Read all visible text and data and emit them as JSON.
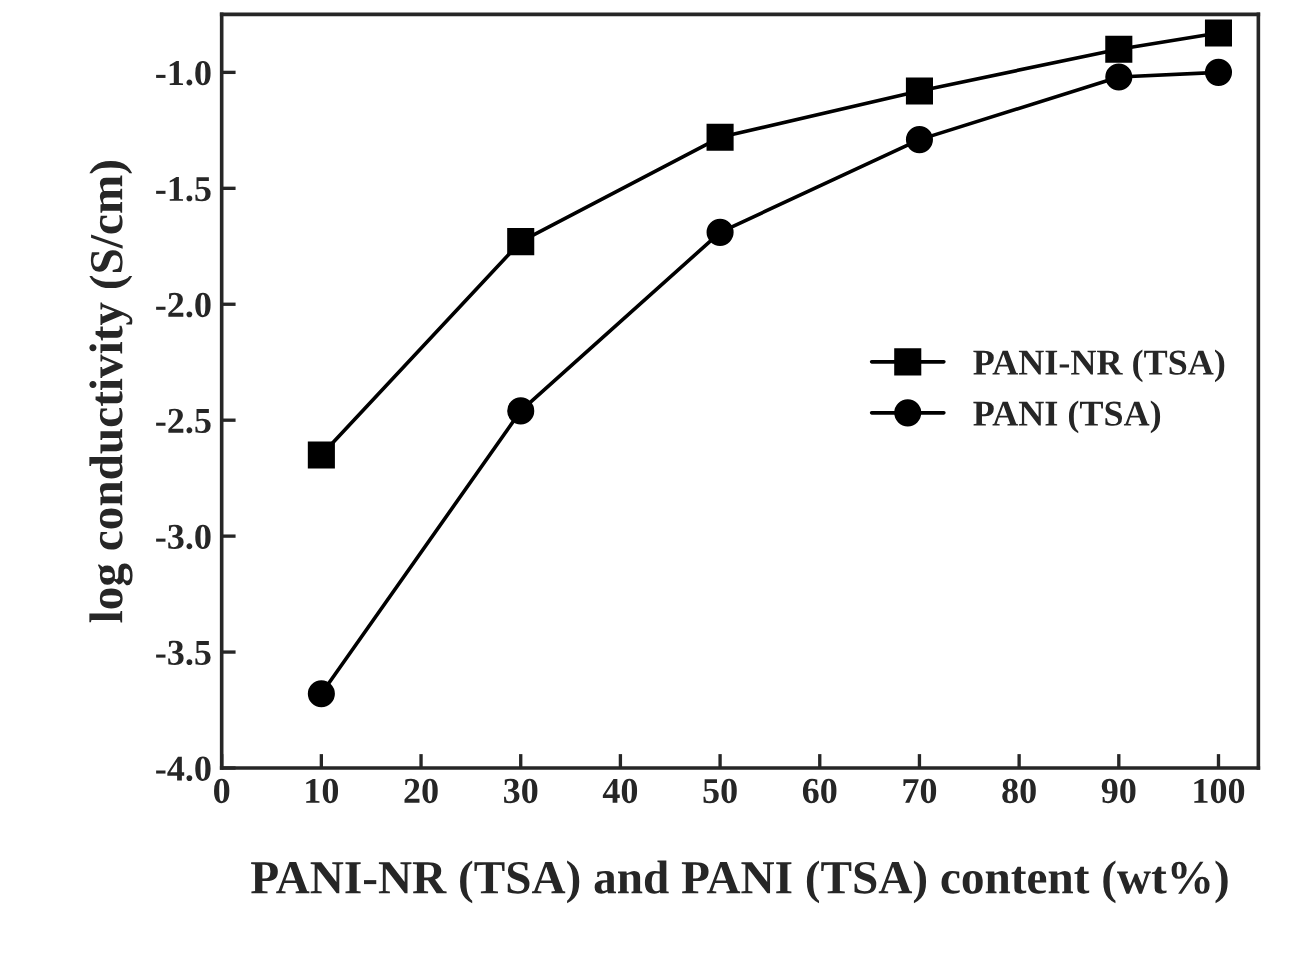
{
  "chart_data": {
    "type": "line",
    "xlabel": "PANI-NR (TSA) and PANI (TSA) content (wt%)",
    "ylabel": "log conductivity (S/cm)",
    "x": [
      10,
      30,
      50,
      70,
      90,
      100
    ],
    "series": [
      {
        "name": "PANI-NR (TSA)",
        "color": "#000000",
        "marker": "square",
        "values": [
          -2.65,
          -1.73,
          -1.28,
          -1.08,
          -0.9,
          -0.83
        ]
      },
      {
        "name": "PANI (TSA)",
        "color": "#000000",
        "marker": "circle",
        "values": [
          -3.68,
          -2.46,
          -1.69,
          -1.29,
          -1.02,
          -1.0
        ]
      }
    ],
    "xlim": [
      0,
      104
    ],
    "xticks": [
      0,
      10,
      20,
      30,
      40,
      50,
      60,
      70,
      80,
      90,
      100
    ],
    "ylim": [
      -4.0,
      -0.75
    ],
    "yticks": [
      {
        "value": -4.0,
        "label": "-4.0"
      },
      {
        "value": -3.5,
        "label": "-3.5"
      },
      {
        "value": -3.0,
        "label": "-3.0"
      },
      {
        "value": -2.5,
        "label": "-2.5"
      },
      {
        "value": -2.0,
        "label": "-2.0"
      },
      {
        "value": -1.5,
        "label": "-1.5"
      },
      {
        "value": -1.0,
        "label": "-1.0"
      }
    ],
    "legend": "center right",
    "grid": false,
    "line_style": "solid"
  }
}
